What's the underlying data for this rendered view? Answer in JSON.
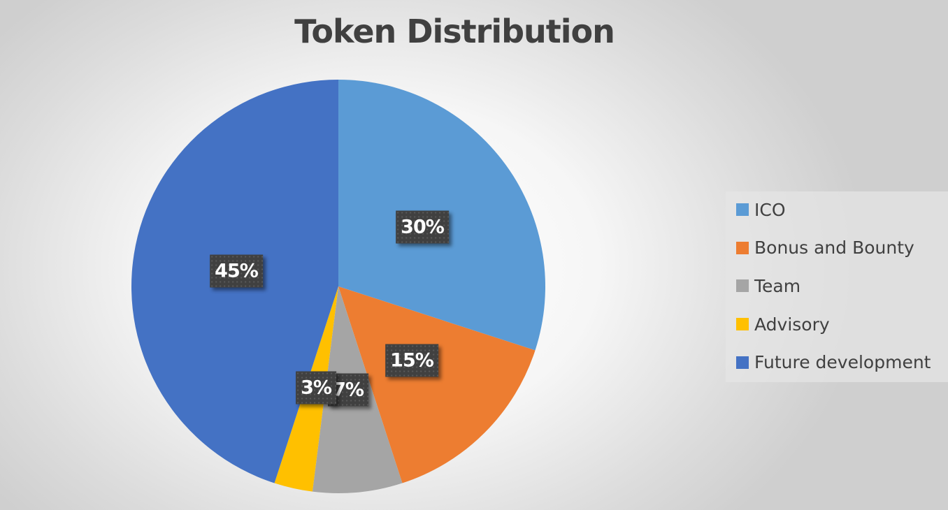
{
  "chart_data": {
    "type": "pie",
    "title": "Token Distribution",
    "categories": [
      "ICO",
      "Bonus and Bounty",
      "Team",
      "Advisory",
      "Future development"
    ],
    "values": [
      30,
      15,
      7,
      3,
      45
    ],
    "data_labels": [
      "30%",
      "15%",
      "7%",
      "3%",
      "45%"
    ],
    "colors": [
      "#5b9bd5",
      "#ed7d31",
      "#a5a5a5",
      "#ffc000",
      "#4472c4"
    ],
    "start_angle": "12 o'clock, clockwise",
    "legend_position": "right"
  }
}
